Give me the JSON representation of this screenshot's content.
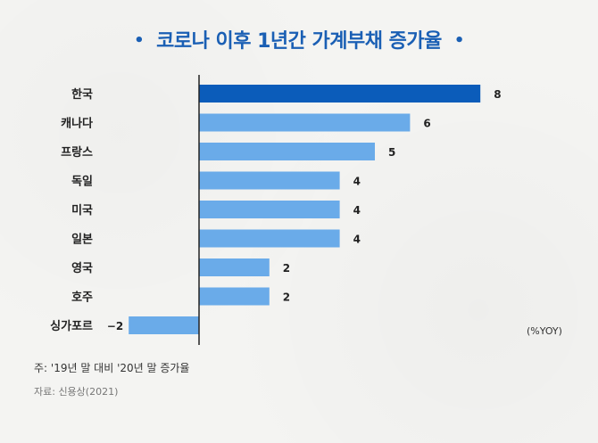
{
  "title": "코로나 이후 1년간 가계부채 증가율",
  "title_bullet": "•",
  "unit_label": "(%YOY)",
  "footnote": "주: '19년 말 대비 '20년 말 증가율",
  "source": "자료: 신용상(2021)",
  "colors": {
    "highlight": "#0b5cba",
    "bar": "#6aabe9",
    "axis": "#222222",
    "title": "#1a5fb4"
  },
  "chart_data": {
    "type": "bar",
    "orientation": "horizontal",
    "title": "코로나 이후 1년간 가계부채 증가율",
    "xlabel": "(%YOY)",
    "ylabel": "",
    "xlim": [
      -2,
      8
    ],
    "grid": false,
    "categories": [
      "한국",
      "캐나다",
      "프랑스",
      "독일",
      "미국",
      "일본",
      "영국",
      "호주",
      "싱가포르"
    ],
    "values": [
      8,
      6,
      5,
      4,
      4,
      4,
      2,
      2,
      -2
    ],
    "value_labels": [
      "8",
      "6",
      "5",
      "4",
      "4",
      "4",
      "2",
      "2",
      "−2"
    ],
    "highlight_index": 0
  }
}
